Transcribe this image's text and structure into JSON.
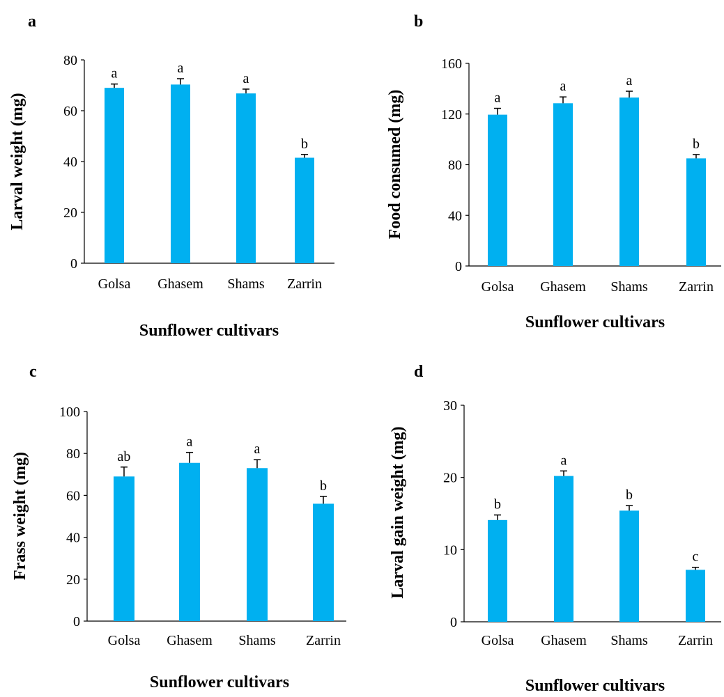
{
  "chart_data": [
    {
      "type": "bar",
      "panel": "a",
      "categories": [
        "Golsa",
        "Ghasem",
        "Shams",
        "Zarrin"
      ],
      "values": [
        69,
        70.3,
        66.8,
        41.5
      ],
      "errors": [
        1.5,
        2.3,
        1.7,
        1.3
      ],
      "significance": [
        "a",
        "a",
        "a",
        "b"
      ],
      "xlabel": "Sunflower cultivars",
      "ylabel": "Larval weight (mg)",
      "ylim": [
        0,
        80
      ],
      "yticks": [
        0,
        20,
        40,
        60,
        80
      ],
      "bar_color": "#00b0f0",
      "grid": false
    },
    {
      "type": "bar",
      "panel": "b",
      "categories": [
        "Golsa",
        "Ghasem",
        "Shams",
        "Zarrin"
      ],
      "values": [
        119.5,
        128.5,
        133,
        85
      ],
      "errors": [
        5,
        5,
        5,
        3
      ],
      "significance": [
        "a",
        "a",
        "a",
        "b"
      ],
      "xlabel": "Sunflower cultivars",
      "ylabel": "Food consumed (mg)",
      "ylim": [
        0,
        160
      ],
      "yticks": [
        0,
        40,
        80,
        120,
        160
      ],
      "bar_color": "#00b0f0",
      "grid": false
    },
    {
      "type": "bar",
      "panel": "c",
      "categories": [
        "Golsa",
        "Ghasem",
        "Shams",
        "Zarrin"
      ],
      "values": [
        69,
        75.5,
        73,
        56
      ],
      "errors": [
        4.5,
        5,
        4,
        3.5
      ],
      "significance": [
        "ab",
        "a",
        "a",
        "b"
      ],
      "xlabel": "Sunflower cultivars",
      "ylabel": "Frass weight (mg)",
      "ylim": [
        0,
        100
      ],
      "yticks": [
        0,
        20,
        40,
        60,
        80,
        100
      ],
      "bar_color": "#00b0f0",
      "grid": false
    },
    {
      "type": "bar",
      "panel": "d",
      "categories": [
        "Golsa",
        "Ghasem",
        "Shams",
        "Zarrin"
      ],
      "values": [
        14.1,
        20.2,
        15.4,
        7.2
      ],
      "errors": [
        0.7,
        0.7,
        0.7,
        0.35
      ],
      "significance": [
        "b",
        "a",
        "b",
        "c"
      ],
      "xlabel": "Sunflower cultivars",
      "ylabel": "Larval gain weight (mg)",
      "ylim": [
        0,
        30
      ],
      "yticks": [
        0,
        10,
        20,
        30
      ],
      "bar_color": "#00b0f0",
      "grid": false
    }
  ]
}
